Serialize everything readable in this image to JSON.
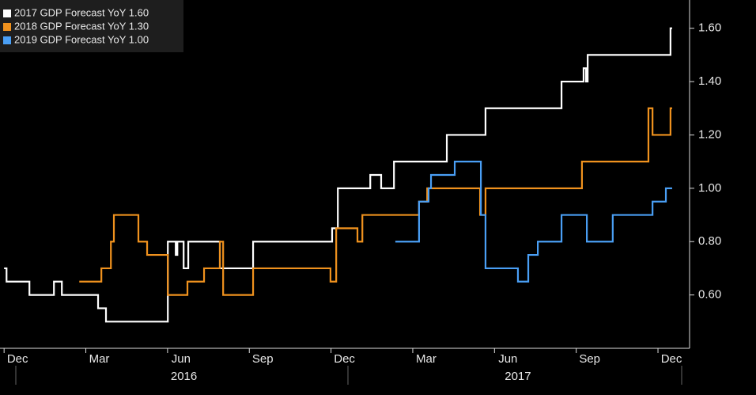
{
  "chart_data": {
    "type": "line",
    "step": true,
    "series": [
      {
        "name": "2017 GDP Forecast YoY 1.60",
        "color": "#ffffff",
        "x": [
          0.0,
          0.09,
          0.93,
          1.83,
          2.12,
          3.45,
          3.74,
          6.01,
          6.3,
          6.36,
          6.59,
          6.76,
          7.92,
          9.14,
          12.04,
          12.25,
          13.44,
          13.84,
          14.31,
          16.25,
          17.67,
          20.46,
          21.27,
          21.36,
          21.42,
          24.46,
          24.52
        ],
        "values": [
          0.7,
          0.65,
          0.6,
          0.65,
          0.6,
          0.55,
          0.5,
          0.8,
          0.75,
          0.8,
          0.7,
          0.8,
          0.7,
          0.8,
          0.85,
          1.0,
          1.05,
          1.0,
          1.1,
          1.2,
          1.3,
          1.4,
          1.45,
          1.4,
          1.5,
          1.6,
          1.6
        ]
      },
      {
        "name": "2018 GDP Forecast YoY 1.30",
        "color": "#f0921e",
        "x": [
          2.76,
          3.57,
          3.92,
          4.03,
          4.93,
          5.25,
          6.01,
          6.73,
          7.34,
          7.92,
          8.04,
          9.14,
          11.98,
          12.19,
          12.97,
          13.15,
          15.23,
          15.53,
          17.47,
          17.67,
          21.21,
          23.65,
          23.8,
          24.46,
          24.52
        ],
        "values": [
          0.65,
          0.7,
          0.8,
          0.9,
          0.8,
          0.75,
          0.6,
          0.65,
          0.7,
          0.8,
          0.6,
          0.7,
          0.65,
          0.85,
          0.8,
          0.9,
          0.95,
          1.0,
          0.9,
          1.0,
          1.1,
          1.3,
          1.2,
          1.3,
          1.3
        ]
      },
      {
        "name": "2019 GDP Forecast YoY 1.00",
        "color": "#4a9ff5",
        "x": [
          14.36,
          15.23,
          15.58,
          15.67,
          16.54,
          17.5,
          17.67,
          18.86,
          19.24,
          19.59,
          20.46,
          21.39,
          22.34,
          23.8,
          24.29,
          24.52
        ],
        "values": [
          0.8,
          0.95,
          1.0,
          1.05,
          1.1,
          0.9,
          0.7,
          0.65,
          0.75,
          0.8,
          0.9,
          0.8,
          0.9,
          0.95,
          1.0,
          1.0
        ]
      }
    ],
    "xlim": [
      -0.15,
      25.16
    ],
    "xticks": [
      {
        "value": 0,
        "label": "Dec"
      },
      {
        "value": 3,
        "label": "Mar"
      },
      {
        "value": 6,
        "label": "Jun"
      },
      {
        "value": 9,
        "label": "Sep"
      },
      {
        "value": 12,
        "label": "Dec"
      },
      {
        "value": 15,
        "label": "Mar"
      },
      {
        "value": 18,
        "label": "Jun"
      },
      {
        "value": 21,
        "label": "Sep"
      },
      {
        "value": 24,
        "label": "Dec"
      }
    ],
    "year_labels": [
      {
        "value": 6.6,
        "label": "2016"
      },
      {
        "value": 18.86,
        "label": "2017"
      }
    ],
    "ylim": [
      0.4,
      1.7
    ],
    "yticks": [
      {
        "value": 0.6,
        "label": "0.60"
      },
      {
        "value": 0.8,
        "label": "0.80"
      },
      {
        "value": 1.0,
        "label": "1.00"
      },
      {
        "value": 1.2,
        "label": "1.20"
      },
      {
        "value": 1.4,
        "label": "1.40"
      },
      {
        "value": 1.6,
        "label": "1.60"
      }
    ]
  }
}
